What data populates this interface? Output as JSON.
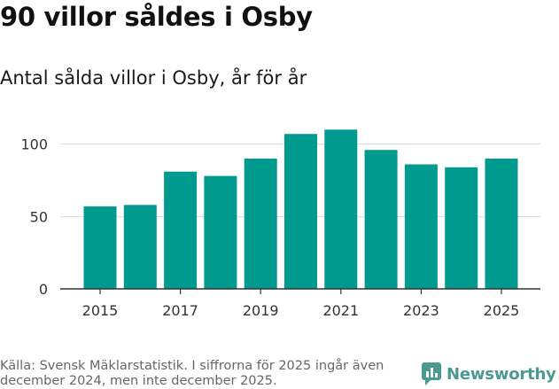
{
  "header": {
    "title": "90 villor såldes i Osby",
    "subtitle": "Antal sålda villor i Osby, år för år"
  },
  "chart_data": {
    "type": "bar",
    "title": "90 villor såldes i Osby",
    "subtitle": "Antal sålda villor i Osby, år för år",
    "xlabel": "",
    "ylabel": "",
    "categories": [
      "2015",
      "2016",
      "2017",
      "2018",
      "2019",
      "2020",
      "2021",
      "2022",
      "2023",
      "2024",
      "2025"
    ],
    "values": [
      57,
      58,
      81,
      78,
      90,
      107,
      110,
      96,
      86,
      84,
      90
    ],
    "x_tick_labels": [
      "2015",
      "2017",
      "2019",
      "2021",
      "2023",
      "2025"
    ],
    "y_ticks": [
      0,
      50,
      100
    ],
    "ylim": [
      0,
      120
    ],
    "grid": true,
    "bar_color": "#009a8e"
  },
  "footer": {
    "source": "Källa: Svensk Mäklarstatistik. I siffrorna för 2025 ingår även december 2024, men inte december 2025.",
    "brand": "Newsworthy",
    "brand_icon": "newsworthy-logo-icon",
    "brand_color": "#4a9a92"
  }
}
